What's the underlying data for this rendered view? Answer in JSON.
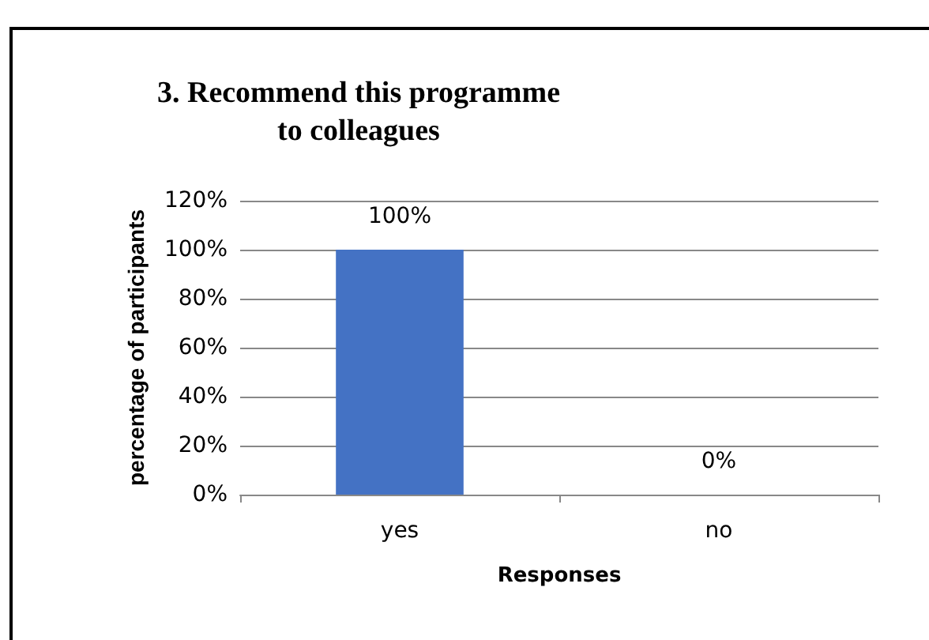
{
  "chart_data": {
    "type": "bar",
    "title": "3. Recommend this programme\nto colleagues",
    "categories": [
      "yes",
      "no"
    ],
    "values": [
      100,
      0
    ],
    "value_labels": [
      "100%",
      "0%"
    ],
    "color": "#4472c4",
    "xlabel": "Responses",
    "ylabel": "percentage of participants",
    "ylim": [
      0,
      120
    ],
    "yticks": [
      {
        "value": 0,
        "label": "0%"
      },
      {
        "value": 20,
        "label": "20%"
      },
      {
        "value": 40,
        "label": "40%"
      },
      {
        "value": 60,
        "label": "60%"
      },
      {
        "value": 80,
        "label": "80%"
      },
      {
        "value": 100,
        "label": "100%"
      },
      {
        "value": 120,
        "label": "120%"
      }
    ],
    "grid": "y"
  }
}
